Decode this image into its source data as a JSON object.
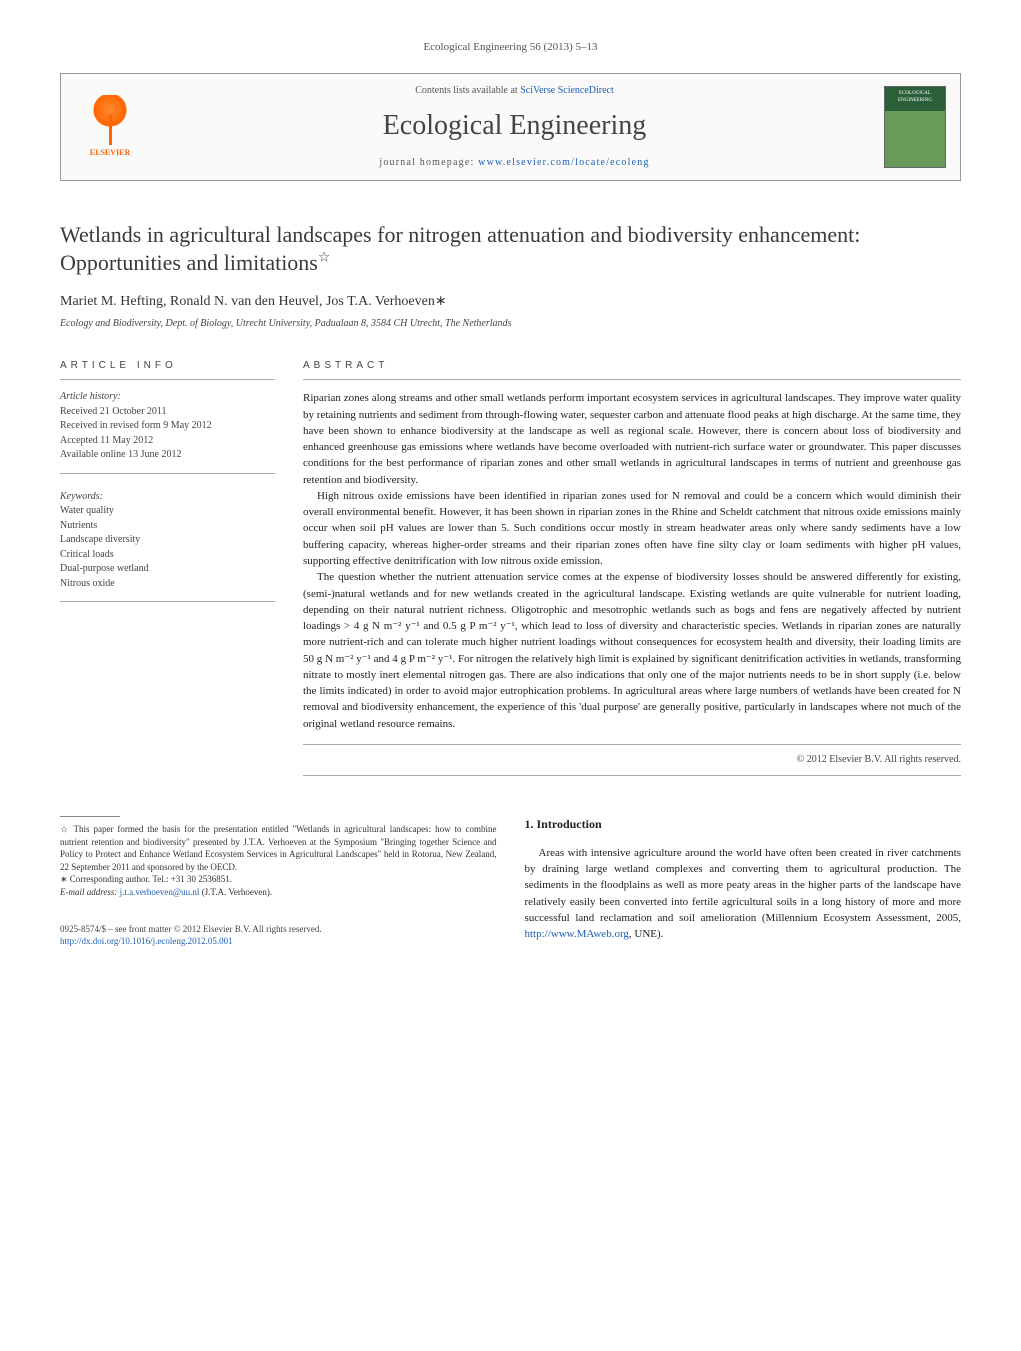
{
  "journal_ref": "Ecological Engineering 56 (2013) 5–13",
  "header": {
    "contents_prefix": "Contents lists available at ",
    "contents_link": "SciVerse ScienceDirect",
    "journal_name": "Ecological Engineering",
    "homepage_prefix": "journal homepage: ",
    "homepage_url": "www.elsevier.com/locate/ecoleng",
    "publisher_name": "ELSEVIER",
    "cover_text": "ECOLOGICAL ENGINEERING"
  },
  "article": {
    "title": "Wetlands in agricultural landscapes for nitrogen attenuation and biodiversity enhancement: Opportunities and limitations",
    "star": "☆",
    "authors": "Mariet M. Hefting, Ronald N. van den Heuvel, Jos T.A. Verhoeven",
    "corr_mark": "∗",
    "affiliation": "Ecology and Biodiversity, Dept. of Biology, Utrecht University, Padualaan 8, 3584 CH Utrecht, The Netherlands"
  },
  "info": {
    "label": "ARTICLE INFO",
    "history_hdr": "Article history:",
    "history": [
      "Received 21 October 2011",
      "Received in revised form 9 May 2012",
      "Accepted 11 May 2012",
      "Available online 13 June 2012"
    ],
    "keywords_hdr": "Keywords:",
    "keywords": [
      "Water quality",
      "Nutrients",
      "Landscape diversity",
      "Critical loads",
      "Dual-purpose wetland",
      "Nitrous oxide"
    ]
  },
  "abstract": {
    "label": "ABSTRACT",
    "p1": "Riparian zones along streams and other small wetlands perform important ecosystem services in agricultural landscapes. They improve water quality by retaining nutrients and sediment from through-flowing water, sequester carbon and attenuate flood peaks at high discharge. At the same time, they have been shown to enhance biodiversity at the landscape as well as regional scale. However, there is concern about loss of biodiversity and enhanced greenhouse gas emissions where wetlands have become overloaded with nutrient-rich surface water or groundwater. This paper discusses conditions for the best performance of riparian zones and other small wetlands in agricultural landscapes in terms of nutrient and greenhouse gas retention and biodiversity.",
    "p2": "High nitrous oxide emissions have been identified in riparian zones used for N removal and could be a concern which would diminish their overall environmental benefit. However, it has been shown in riparian zones in the Rhine and Scheldt catchment that nitrous oxide emissions mainly occur when soil pH values are lower than 5. Such conditions occur mostly in stream headwater areas only where sandy sediments have a low buffering capacity, whereas higher-order streams and their riparian zones often have fine silty clay or loam sediments with higher pH values, supporting effective denitrification with low nitrous oxide emission.",
    "p3": "The question whether the nutrient attenuation service comes at the expense of biodiversity losses should be answered differently for existing, (semi-)natural wetlands and for new wetlands created in the agricultural landscape. Existing wetlands are quite vulnerable for nutrient loading, depending on their natural nutrient richness. Oligotrophic and mesotrophic wetlands such as bogs and fens are negatively affected by nutrient loadings > 4 g N m⁻² y⁻¹ and 0.5 g P m⁻² y⁻¹, which lead to loss of diversity and characteristic species. Wetlands in riparian zones are naturally more nutrient-rich and can tolerate much higher nutrient loadings without consequences for ecosystem health and diversity, their loading limits are 50 g N m⁻² y⁻¹ and 4 g P m⁻² y⁻¹. For nitrogen the relatively high limit is explained by significant denitrification activities in wetlands, transforming nitrate to mostly inert elemental nitrogen gas. There are also indications that only one of the major nutrients needs to be in short supply (i.e. below the limits indicated) in order to avoid major eutrophication problems. In agricultural areas where large numbers of wetlands have been created for N removal and biodiversity enhancement, the experience of this 'dual purpose' are generally positive, particularly in landscapes where not much of the original wetland resource remains.",
    "copyright": "© 2012 Elsevier B.V. All rights reserved."
  },
  "footnotes": {
    "star_note": "☆ This paper formed the basis for the presentation entitled \"Wetlands in agricultural landscapes: how to combine nutrient retention and biodiversity\" presented by J.T.A. Verhoeven at the Symposium \"Bringing together Science and Policy to Protect and Enhance Wetland Ecosystem Services in Agricultural Landscapes\" held in Rotorua, New Zealand, 22 September 2011 and sponsored by the OECD.",
    "corr_label": "∗ Corresponding author. Tel.: +31 30 2536851.",
    "email_label": "E-mail address: ",
    "email": "j.t.a.verhoeven@uu.nl",
    "email_suffix": " (J.T.A. Verhoeven)."
  },
  "intro": {
    "heading": "1. Introduction",
    "p1_a": "Areas with intensive agriculture around the world have often been created in river catchments by draining large wetland complexes and converting them to agricultural production. The sediments in the floodplains as well as more peaty areas in the higher parts of the landscape have relatively easily been converted into fertile agricultural soils in a long history of more and more successful land reclamation and soil amelioration (Millennium Ecosystem Assessment, 2005, ",
    "p1_link": "http://www.MAweb.org",
    "p1_b": ", UNE)."
  },
  "footer": {
    "issn_line": "0925-8574/$ – see front matter © 2012 Elsevier B.V. All rights reserved.",
    "doi": "http://dx.doi.org/10.1016/j.ecoleng.2012.05.001"
  },
  "colors": {
    "link": "#1a5fb4",
    "text": "#333333",
    "accent": "#ff6600"
  }
}
